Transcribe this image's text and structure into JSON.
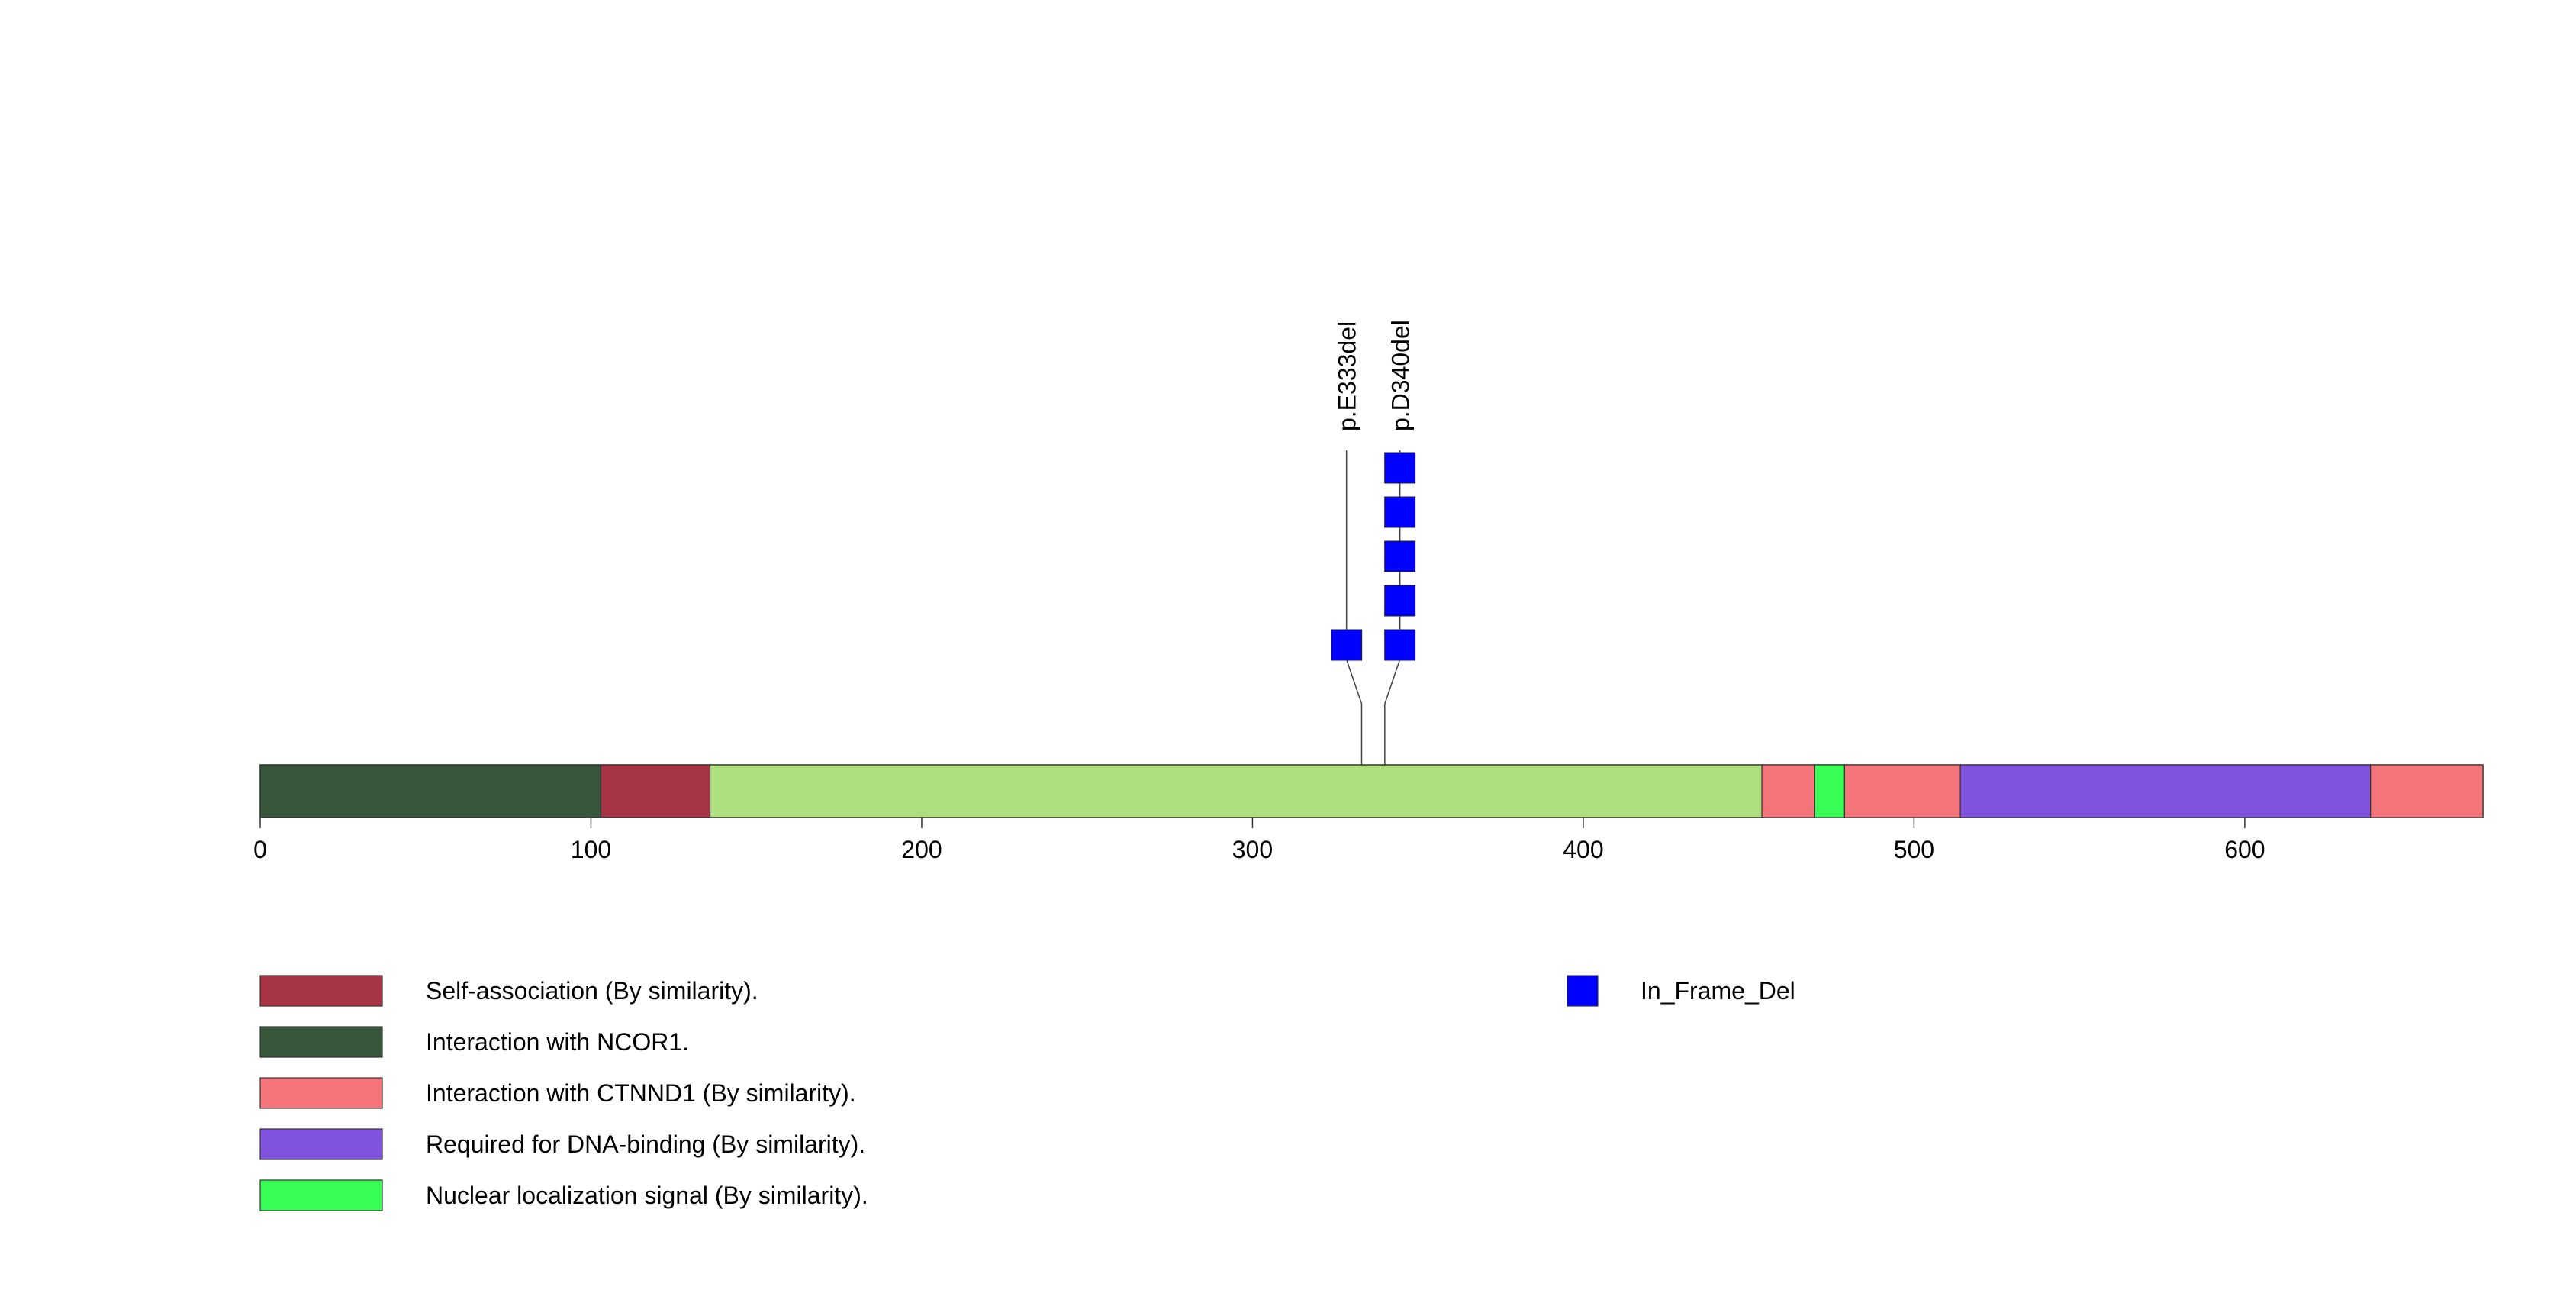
{
  "chart_data": {
    "type": "lollipop",
    "x_axis": {
      "min": 0,
      "max": 672,
      "ticks": [
        0,
        100,
        200,
        300,
        400,
        500,
        600
      ]
    },
    "protein_length": 672,
    "backbone_color": "#addf7f",
    "domains": [
      {
        "label": "Interaction with NCOR1.",
        "start": 1,
        "end": 103,
        "color": "#385639"
      },
      {
        "label": "Self-association (By similarity).",
        "start": 103,
        "end": 136,
        "color": "#a63444"
      },
      {
        "label": "Interaction with CTNND1 (By similarity).",
        "start": 454,
        "end": 470,
        "color": "#f37479"
      },
      {
        "label": "Nuclear localization signal (By similarity).",
        "start": 470,
        "end": 479,
        "color": "#37ff56"
      },
      {
        "label": "Interaction with CTNND1 (By similarity).",
        "start": 479,
        "end": 514,
        "color": "#f37479"
      },
      {
        "label": "Required for DNA-binding (By similarity).",
        "start": 514,
        "end": 638,
        "color": "#7f53dd"
      },
      {
        "label": "Interaction with CTNND1 (By similarity).",
        "start": 638,
        "end": 672,
        "color": "#f37479"
      }
    ],
    "mutations": [
      {
        "label": "p.E333del",
        "position": 333,
        "count": 1,
        "type": "In_Frame_Del"
      },
      {
        "label": "p.D340del",
        "position": 340,
        "count": 5,
        "type": "In_Frame_Del"
      }
    ],
    "legend_domains": [
      {
        "label": "Self-association (By similarity).",
        "color": "#a63444"
      },
      {
        "label": "Interaction with NCOR1.",
        "color": "#385639"
      },
      {
        "label": "Interaction with CTNND1 (By similarity).",
        "color": "#f37479"
      },
      {
        "label": "Required for DNA-binding (By similarity).",
        "color": "#7f53dd"
      },
      {
        "label": "Nuclear localization signal (By similarity).",
        "color": "#37ff56"
      }
    ],
    "legend_mutation_types": [
      {
        "label": "In_Frame_Del",
        "color": "#0000ff"
      }
    ]
  }
}
